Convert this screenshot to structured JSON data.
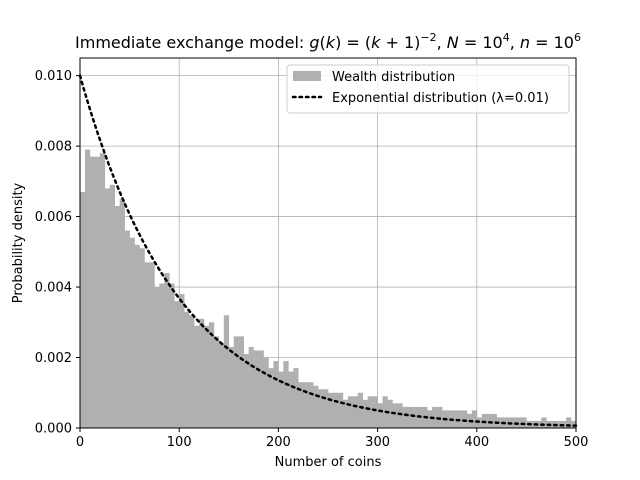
{
  "chart_data": {
    "type": "bar",
    "title": "Immediate exchange model: g(k) = (k + 1)⁻², N = 10⁴, n = 10⁶",
    "title_parts": {
      "prefix": "Immediate exchange model: ",
      "g": "g",
      "k1": "k",
      "eq1": " = (",
      "k2": "k",
      "plus1": " + 1)",
      "exp1": "−2",
      "sep1": ", ",
      "N": "N",
      "eq2": " = 10",
      "exp2": "4",
      "sep2": ", ",
      "n": "n",
      "eq3": " = 10",
      "exp3": "6"
    },
    "xlabel": "Number of coins",
    "ylabel": "Probability density",
    "xlim": [
      0,
      500
    ],
    "ylim": [
      0,
      0.0105
    ],
    "xticks": [
      0,
      100,
      200,
      300,
      400,
      500
    ],
    "xtick_labels": [
      "0",
      "100",
      "200",
      "300",
      "400",
      "500"
    ],
    "yticks": [
      0,
      0.002,
      0.004,
      0.006,
      0.008,
      0.01
    ],
    "ytick_labels": [
      "0.000",
      "0.002",
      "0.004",
      "0.006",
      "0.008",
      "0.010"
    ],
    "grid": true,
    "legend_position": "top-right",
    "histogram": {
      "name": "Wealth distribution",
      "color": "#b0b0b0",
      "bin_width": 5,
      "bin_start": 0,
      "densities": [
        0.0067,
        0.0079,
        0.0077,
        0.0077,
        0.0078,
        0.0068,
        0.0069,
        0.0063,
        0.0065,
        0.0056,
        0.0054,
        0.0052,
        0.0051,
        0.0047,
        0.0047,
        0.004,
        0.0041,
        0.0044,
        0.0041,
        0.0036,
        0.0038,
        0.0033,
        0.0032,
        0.0029,
        0.0031,
        0.0029,
        0.003,
        0.0026,
        0.0024,
        0.0032,
        0.0023,
        0.0026,
        0.0026,
        0.0021,
        0.0023,
        0.0022,
        0.0022,
        0.002,
        0.0017,
        0.0019,
        0.0016,
        0.0019,
        0.0016,
        0.0017,
        0.0013,
        0.0013,
        0.0013,
        0.0012,
        0.0011,
        0.0011,
        0.001,
        0.001,
        0.001,
        0.0008,
        0.0009,
        0.0009,
        0.001,
        0.0008,
        0.0009,
        0.0009,
        0.0007,
        0.0009,
        0.0008,
        0.0007,
        0.0007,
        0.0006,
        0.0006,
        0.0006,
        0.0006,
        0.0006,
        0.0005,
        0.0006,
        0.0006,
        0.0005,
        0.0005,
        0.0005,
        0.0005,
        0.0005,
        0.0004,
        0.0005,
        0.0003,
        0.0004,
        0.0004,
        0.0004,
        0.0003,
        0.0003,
        0.0003,
        0.0003,
        0.0003,
        0.0003,
        0.0002,
        0.0002,
        0.0002,
        0.0003,
        0.0002,
        0.0002,
        0.0002,
        0.0002,
        0.0003,
        0.0002,
        0.0002,
        0.0002,
        0.0002,
        0.0001,
        0.0002,
        0.0001,
        0.0001,
        0.0001,
        0.0001,
        0.0001,
        0.0001,
        0.0001,
        0.0001,
        0.0001,
        0.0001,
        0.0001,
        0.0,
        0.0001,
        0.0,
        0.0
      ]
    },
    "curve": {
      "name": "Exponential distribution (λ=0.01)",
      "lambda": 0.01,
      "color": "#000000",
      "style": "dotted"
    }
  }
}
